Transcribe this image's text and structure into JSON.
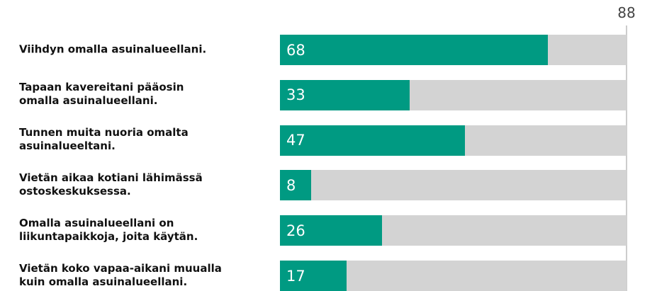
{
  "chart_data": {
    "type": "bar",
    "orientation": "horizontal",
    "categories": [
      "Viihdyn omalla asuinalueellani.",
      "Tapaan kavereitani pääosin\nomalla asuinalueellani.",
      "Tunnen muita nuoria omalta\nasuinalueeltani.",
      "Vietän aikaa kotiani lähimässä\nostoskeskuksessa.",
      "Omalla asuinalueellani on\nliikuntapaikkoja, joita käytän.",
      "Vietän koko vapaa-aikani muualla\nkuin omalla asuinalueellani."
    ],
    "values": [
      68,
      33,
      47,
      8,
      26,
      17
    ],
    "color": "#009a82",
    "background_color": "#d3d3d3",
    "xlim": [
      0,
      88
    ],
    "xticks": [
      88
    ]
  }
}
